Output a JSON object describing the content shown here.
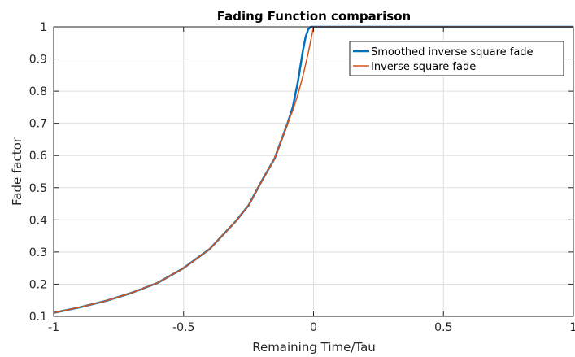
{
  "chart_data": {
    "type": "line",
    "title": "Fading Function comparison",
    "xlabel": "Remaining Time/Tau",
    "ylabel": "Fade factor",
    "xlim": [
      -1,
      1
    ],
    "ylim": [
      0.1,
      1
    ],
    "x_ticks": [
      -1,
      -0.5,
      0,
      0.5,
      1
    ],
    "x_tick_labels": [
      "-1",
      "-0.5",
      "0",
      "0.5",
      "1"
    ],
    "y_ticks": [
      0.1,
      0.2,
      0.3,
      0.4,
      0.5,
      0.6,
      0.7,
      0.8,
      0.9,
      1
    ],
    "y_tick_labels": [
      "0.1",
      "0.2",
      "0.3",
      "0.4",
      "0.5",
      "0.6",
      "0.7",
      "0.8",
      "0.9",
      "1"
    ],
    "grid": true,
    "legend_position": "top-right",
    "series": [
      {
        "name": "Smoothed inverse square fade",
        "color": "#0072BD",
        "x": [
          -1,
          -0.9,
          -0.8,
          -0.7,
          -0.6,
          -0.5,
          -0.4,
          -0.3,
          -0.25,
          -0.2,
          -0.15,
          -0.1,
          -0.08,
          -0.06,
          -0.05,
          -0.04,
          -0.03,
          -0.02,
          -0.01,
          0,
          0.1,
          0.25,
          0.5,
          0.75,
          1
        ],
        "y": [
          0.111,
          0.128,
          0.148,
          0.173,
          0.204,
          0.25,
          0.309,
          0.395,
          0.445,
          0.52,
          0.59,
          0.7,
          0.75,
          0.83,
          0.88,
          0.93,
          0.97,
          0.993,
          1.0,
          1.0,
          1.0,
          1.0,
          1.0,
          1.0,
          1.0
        ]
      },
      {
        "name": "Inverse square fade",
        "color": "#D95319",
        "x": [
          -1,
          -0.9,
          -0.8,
          -0.7,
          -0.6,
          -0.5,
          -0.4,
          -0.3,
          -0.25,
          -0.2,
          -0.15,
          -0.1,
          -0.08,
          -0.06,
          -0.04,
          -0.02,
          0,
          0.1,
          0.25,
          0.5,
          0.75,
          1
        ],
        "y": [
          0.111,
          0.128,
          0.148,
          0.173,
          0.204,
          0.25,
          0.309,
          0.395,
          0.445,
          0.52,
          0.59,
          0.7,
          0.74,
          0.79,
          0.85,
          0.92,
          1.0,
          1.0,
          1.0,
          1.0,
          1.0,
          1.0
        ]
      }
    ]
  }
}
